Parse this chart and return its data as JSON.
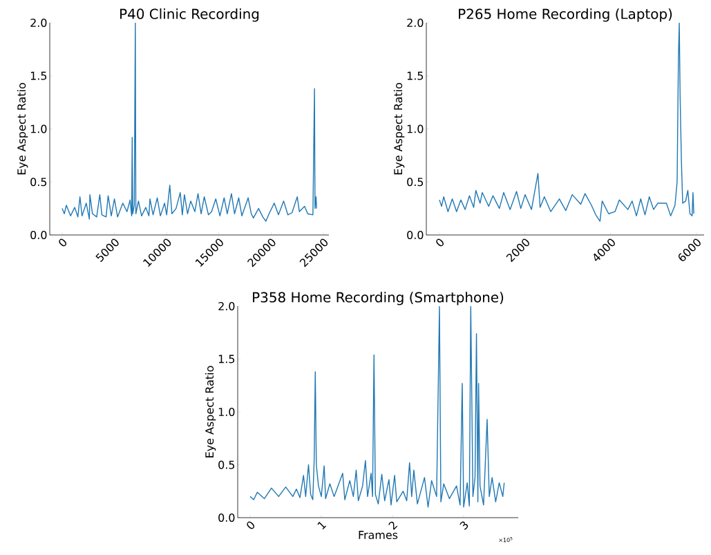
{
  "chart_data": [
    {
      "type": "line",
      "title": "P40 Clinic Recording",
      "ylabel": "Eye Aspect Ratio",
      "xlim": [
        -1190,
        25530
      ],
      "ylim": [
        0,
        2
      ],
      "xticks": [
        0,
        5000,
        10000,
        15000,
        20000,
        25000
      ],
      "yticks": [
        {
          "value": 0,
          "label": "0.0"
        },
        {
          "value": 0.5,
          "label": "0.5"
        },
        {
          "value": 1,
          "label": "1.0"
        },
        {
          "value": 1.5,
          "label": "1.5"
        },
        {
          "value": 2,
          "label": "2.0"
        }
      ],
      "series": [
        {
          "color": "#1f77b4",
          "x": [
            0,
            200,
            400,
            800,
            1200,
            1500,
            1700,
            1900,
            2300,
            2600,
            2650,
            2900,
            3300,
            3600,
            3800,
            4200,
            4400,
            4700,
            5000,
            5300,
            5800,
            6200,
            6500,
            6650,
            6700,
            6750,
            6900,
            7000,
            7050,
            7300,
            7600,
            8000,
            8300,
            8400,
            8700,
            9100,
            9400,
            9800,
            10000,
            10300,
            10500,
            10900,
            11300,
            11500,
            11700,
            12000,
            12300,
            12700,
            13000,
            13300,
            13600,
            14000,
            14300,
            14700,
            15100,
            15500,
            15800,
            16200,
            16500,
            16900,
            17200,
            17800,
            18100,
            18300,
            18800,
            19200,
            19500,
            19800,
            20300,
            20700,
            21200,
            21600,
            22000,
            22500,
            22700,
            23200,
            23500,
            24000,
            24150,
            24200,
            24300,
            24350
          ],
          "values": [
            0.25,
            0.2,
            0.28,
            0.18,
            0.26,
            0.17,
            0.36,
            0.18,
            0.3,
            0.15,
            0.38,
            0.2,
            0.17,
            0.38,
            0.19,
            0.17,
            0.37,
            0.18,
            0.34,
            0.17,
            0.3,
            0.22,
            0.33,
            0.18,
            0.92,
            0.2,
            0.28,
            2.0,
            0.2,
            0.32,
            0.18,
            0.26,
            0.18,
            0.34,
            0.19,
            0.35,
            0.18,
            0.3,
            0.19,
            0.47,
            0.2,
            0.25,
            0.4,
            0.19,
            0.38,
            0.2,
            0.32,
            0.22,
            0.39,
            0.2,
            0.36,
            0.19,
            0.22,
            0.34,
            0.18,
            0.35,
            0.2,
            0.39,
            0.2,
            0.35,
            0.18,
            0.35,
            0.2,
            0.16,
            0.25,
            0.17,
            0.13,
            0.2,
            0.3,
            0.19,
            0.32,
            0.19,
            0.21,
            0.36,
            0.22,
            0.27,
            0.2,
            0.19,
            1.38,
            0.25,
            0.36,
            0.25
          ]
        }
      ]
    },
    {
      "type": "line",
      "title": "P265 Home Recording (Laptop)",
      "ylabel": "Eye Aspect Ratio",
      "xlim": [
        -306,
        6180
      ],
      "ylim": [
        0,
        2
      ],
      "xticks": [
        0,
        2000,
        4000,
        6000
      ],
      "yticks": [
        {
          "value": 0,
          "label": "0.0"
        },
        {
          "value": 0.5,
          "label": "0.5"
        },
        {
          "value": 1,
          "label": "1.0"
        },
        {
          "value": 1.5,
          "label": "1.5"
        },
        {
          "value": 2,
          "label": "2.0"
        }
      ],
      "series": [
        {
          "color": "#1f77b4",
          "x": [
            0,
            50,
            100,
            200,
            300,
            400,
            500,
            600,
            700,
            800,
            850,
            950,
            1000,
            1150,
            1250,
            1400,
            1500,
            1650,
            1800,
            1900,
            2000,
            2150,
            2300,
            2350,
            2450,
            2600,
            2800,
            2950,
            3100,
            3300,
            3400,
            3550,
            3650,
            3750,
            3800,
            3950,
            4100,
            4200,
            4400,
            4500,
            4600,
            4700,
            4800,
            4900,
            5000,
            5100,
            5300,
            5400,
            5500,
            5550,
            5580,
            5600,
            5620,
            5650,
            5680,
            5750,
            5800,
            5850,
            5900,
            5920,
            5940
          ],
          "values": [
            0.33,
            0.27,
            0.36,
            0.22,
            0.34,
            0.22,
            0.33,
            0.24,
            0.37,
            0.26,
            0.42,
            0.3,
            0.4,
            0.27,
            0.37,
            0.25,
            0.4,
            0.24,
            0.41,
            0.25,
            0.38,
            0.24,
            0.58,
            0.26,
            0.36,
            0.22,
            0.34,
            0.23,
            0.38,
            0.29,
            0.39,
            0.28,
            0.19,
            0.13,
            0.32,
            0.2,
            0.22,
            0.33,
            0.24,
            0.32,
            0.18,
            0.34,
            0.19,
            0.36,
            0.24,
            0.3,
            0.3,
            0.18,
            0.28,
            0.5,
            1.66,
            2.0,
            1.3,
            0.7,
            0.3,
            0.32,
            0.42,
            0.2,
            0.18,
            0.4,
            0.2
          ]
        }
      ]
    },
    {
      "type": "line",
      "title": "P358 Home Recording (Smartphone)",
      "xlabel": "Frames",
      "ylabel": "Eye Aspect Ratio",
      "annotations": [
        "×10$^{5}$"
      ],
      "xlim": [
        -0.175,
        3.767
      ],
      "ylim": [
        0,
        2
      ],
      "xticks": [
        0,
        1,
        2,
        3
      ],
      "yticks": [
        {
          "value": 0,
          "label": "0.0"
        },
        {
          "value": 0.5,
          "label": "0.5"
        },
        {
          "value": 1,
          "label": "1.0"
        },
        {
          "value": 1.5,
          "label": "1.5"
        },
        {
          "value": 2,
          "label": "2.0"
        }
      ],
      "series": [
        {
          "color": "#1f77b4",
          "x": [
            0,
            0.05,
            0.1,
            0.2,
            0.3,
            0.4,
            0.5,
            0.6,
            0.65,
            0.7,
            0.75,
            0.78,
            0.82,
            0.85,
            0.88,
            0.9,
            0.915,
            0.93,
            0.96,
            1.0,
            1.04,
            1.06,
            1.12,
            1.18,
            1.3,
            1.33,
            1.4,
            1.45,
            1.49,
            1.52,
            1.58,
            1.62,
            1.65,
            1.7,
            1.72,
            1.74,
            1.76,
            1.8,
            1.85,
            1.89,
            1.95,
            1.98,
            2.03,
            2.06,
            2.15,
            2.2,
            2.24,
            2.27,
            2.3,
            2.35,
            2.45,
            2.5,
            2.55,
            2.62,
            2.66,
            2.68,
            2.72,
            2.8,
            2.9,
            2.95,
            2.98,
            3.0,
            3.05,
            3.08,
            3.1,
            3.13,
            3.16,
            3.18,
            3.2,
            3.21,
            3.23,
            3.28,
            3.33,
            3.36,
            3.4,
            3.45,
            3.5,
            3.55,
            3.57
          ],
          "values": [
            0.2,
            0.17,
            0.24,
            0.18,
            0.28,
            0.2,
            0.29,
            0.2,
            0.27,
            0.19,
            0.4,
            0.2,
            0.5,
            0.22,
            0.17,
            0.55,
            1.38,
            0.5,
            0.3,
            0.2,
            0.49,
            0.18,
            0.32,
            0.2,
            0.42,
            0.17,
            0.35,
            0.2,
            0.45,
            0.16,
            0.3,
            0.54,
            0.2,
            0.42,
            0.2,
            1.54,
            0.22,
            0.13,
            0.41,
            0.16,
            0.36,
            0.12,
            0.4,
            0.15,
            0.25,
            0.16,
            0.52,
            0.2,
            0.45,
            0.13,
            0.38,
            0.1,
            0.35,
            0.2,
            2.0,
            0.15,
            0.32,
            0.18,
            0.3,
            0.12,
            1.27,
            0.1,
            0.33,
            0.11,
            2.0,
            0.2,
            0.38,
            1.74,
            0.15,
            1.27,
            0.3,
            0.12,
            0.93,
            0.2,
            0.38,
            0.15,
            0.33,
            0.2,
            0.33
          ]
        }
      ]
    }
  ]
}
